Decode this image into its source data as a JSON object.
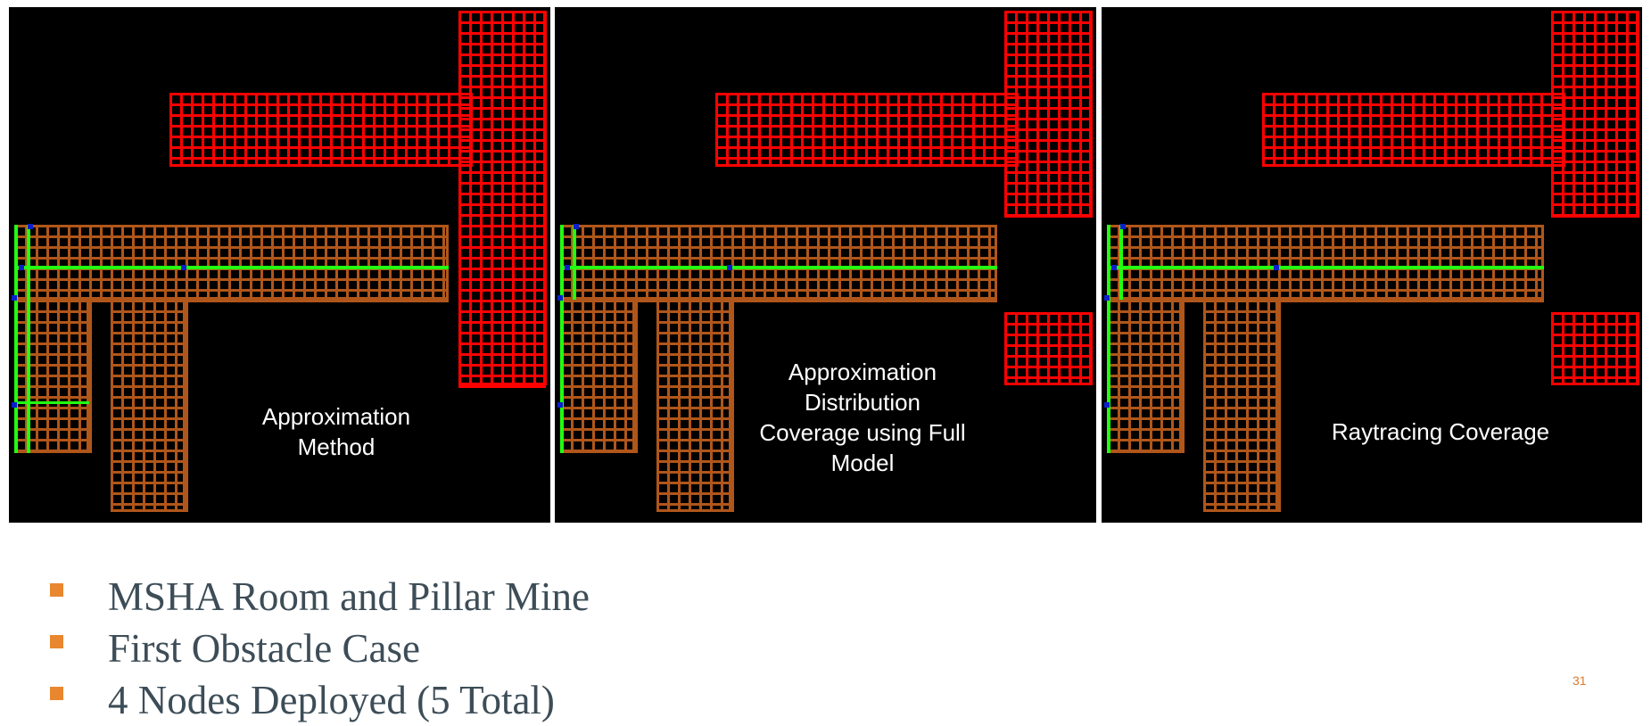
{
  "panels": [
    {
      "id": "approx",
      "caption_lines": [
        "Approximation",
        "Method"
      ],
      "variant": "approx"
    },
    {
      "id": "distribution",
      "caption_lines": [
        "Approximation",
        "Distribution",
        "Coverage using Full",
        "Model"
      ],
      "variant": "full"
    },
    {
      "id": "raytracing",
      "caption_lines": [
        "Raytracing Coverage"
      ],
      "variant": "full"
    }
  ],
  "bullets": [
    {
      "text": "MSHA Room and Pillar Mine"
    },
    {
      "text": "First Obstacle Case"
    },
    {
      "text": "4 Nodes Deployed (5 Total)"
    }
  ],
  "page_number": "31",
  "colors": {
    "uncovered": "#FF0000",
    "covered": "#B0561A",
    "strong_signal": "#22FF11",
    "node": "#0A1FCC",
    "bullet_marker": "#E8872F",
    "bullet_text": "#3D4D57"
  }
}
